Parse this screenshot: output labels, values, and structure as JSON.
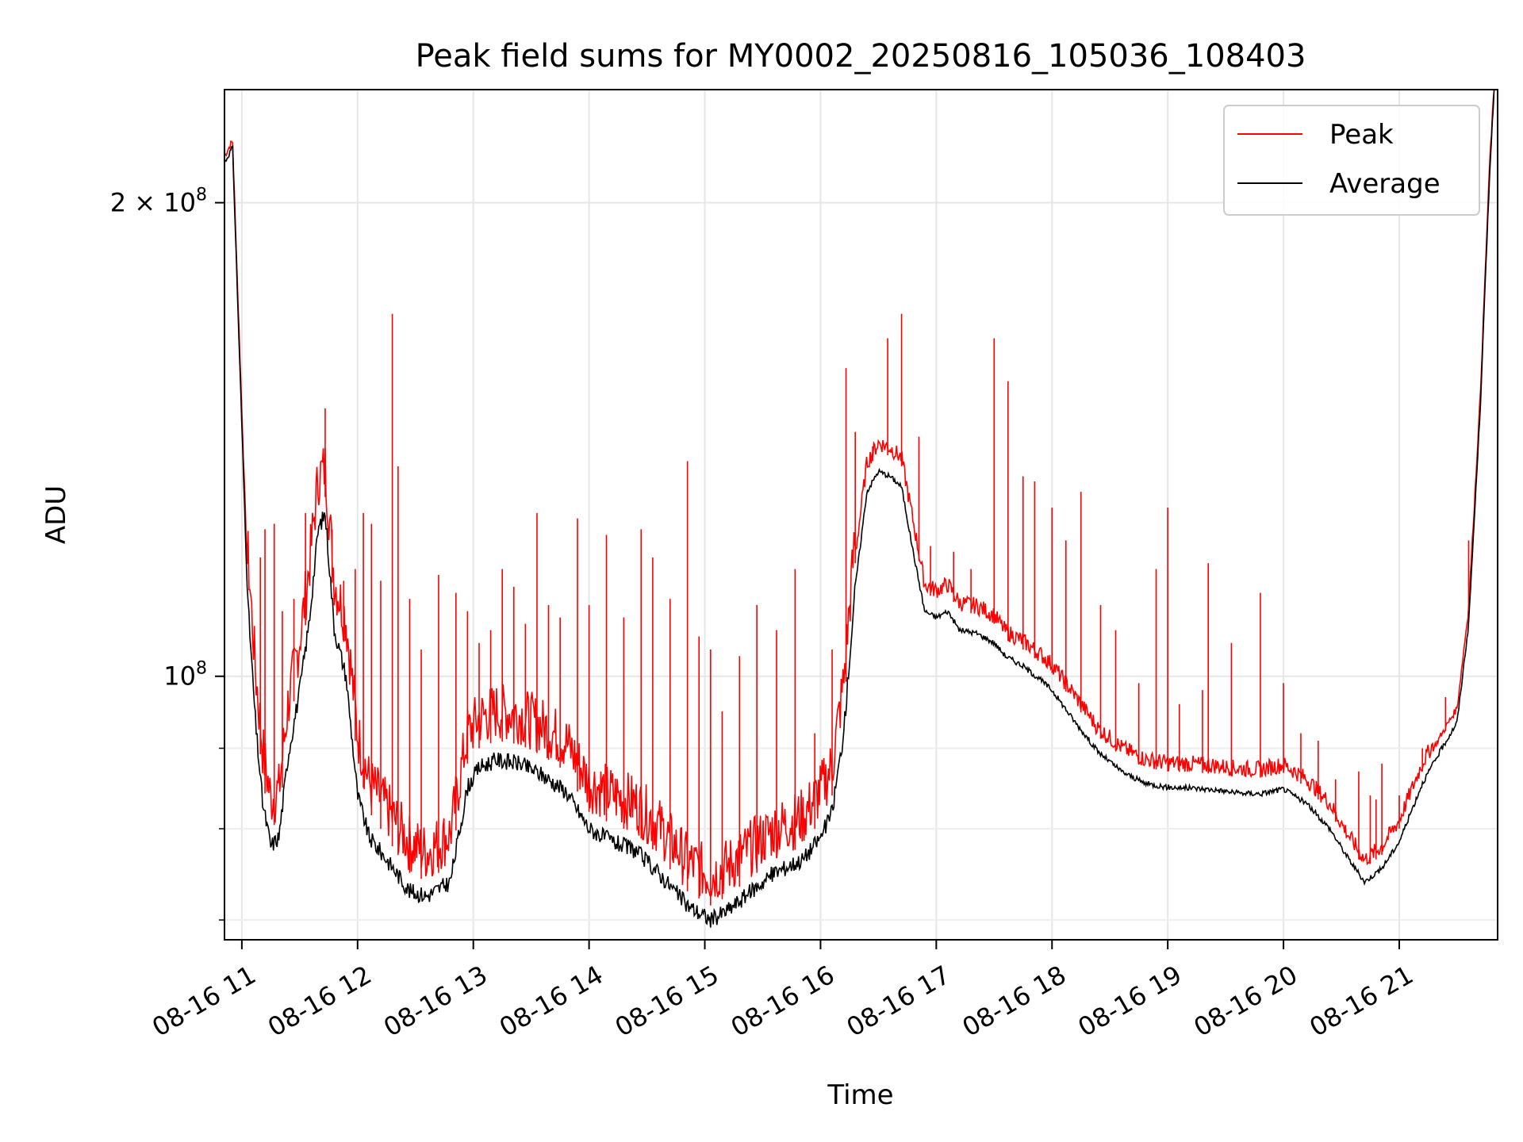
{
  "chart_data": {
    "type": "line",
    "title": "Peak field sums for MY0002_20250816_105036_108403",
    "xlabel": "Time",
    "ylabel": "ADU",
    "yscale": "log",
    "x_unit": "hour of 2025-08-16",
    "xlim": [
      10.85,
      21.85
    ],
    "ylim": [
      68000000,
      236000000
    ],
    "grid": true,
    "legend_position": "top-right",
    "x_ticks": [
      {
        "value": 11,
        "label": "08-16 11"
      },
      {
        "value": 12,
        "label": "08-16 12"
      },
      {
        "value": 13,
        "label": "08-16 13"
      },
      {
        "value": 14,
        "label": "08-16 14"
      },
      {
        "value": 15,
        "label": "08-16 15"
      },
      {
        "value": 16,
        "label": "08-16 16"
      },
      {
        "value": 17,
        "label": "08-16 17"
      },
      {
        "value": 18,
        "label": "08-16 18"
      },
      {
        "value": 19,
        "label": "08-16 19"
      },
      {
        "value": 20,
        "label": "08-16 20"
      },
      {
        "value": 21,
        "label": "08-16 21"
      }
    ],
    "y_major_ticks": [
      {
        "value": 100000000,
        "base": "10",
        "exp": "8",
        "prefix": ""
      },
      {
        "value": 200000000,
        "base": "10",
        "exp": "8",
        "prefix": "2 × "
      }
    ],
    "y_minor_ticks": [
      70000000,
      80000000,
      90000000
    ],
    "series": [
      {
        "name": "Peak",
        "color": "#ff0000",
        "points": [
          [
            10.85,
            213000000
          ],
          [
            10.92,
            218000000
          ],
          [
            10.97,
            170000000
          ],
          [
            11.05,
            115000000
          ],
          [
            11.12,
            96000000
          ],
          [
            11.18,
            86000000
          ],
          [
            11.25,
            80000000
          ],
          [
            11.32,
            81000000
          ],
          [
            11.4,
            92000000
          ],
          [
            11.5,
            101000000
          ],
          [
            11.58,
            112000000
          ],
          [
            11.66,
            128000000
          ],
          [
            11.72,
            130000000
          ],
          [
            11.8,
            110000000
          ],
          [
            11.9,
            104000000
          ],
          [
            12.0,
            88000000
          ],
          [
            12.1,
            82000000
          ],
          [
            12.25,
            79000000
          ],
          [
            12.45,
            75000000
          ],
          [
            12.6,
            74000000
          ],
          [
            12.8,
            76000000
          ],
          [
            12.95,
            88000000
          ],
          [
            13.05,
            90000000
          ],
          [
            13.2,
            91000000
          ],
          [
            13.4,
            90500000
          ],
          [
            13.6,
            89000000
          ],
          [
            13.8,
            87000000
          ],
          [
            14.0,
            82000000
          ],
          [
            14.2,
            80500000
          ],
          [
            14.4,
            79500000
          ],
          [
            14.6,
            77000000
          ],
          [
            14.85,
            73000000
          ],
          [
            15.05,
            71500000
          ],
          [
            15.2,
            72500000
          ],
          [
            15.4,
            74500000
          ],
          [
            15.6,
            76500000
          ],
          [
            15.85,
            78000000
          ],
          [
            16.0,
            81000000
          ],
          [
            16.1,
            84000000
          ],
          [
            16.2,
            95000000
          ],
          [
            16.3,
            118000000
          ],
          [
            16.4,
            135000000
          ],
          [
            16.5,
            139000000
          ],
          [
            16.6,
            138000000
          ],
          [
            16.7,
            136000000
          ],
          [
            16.8,
            124000000
          ],
          [
            16.9,
            113000000
          ],
          [
            17.0,
            112000000
          ],
          [
            17.1,
            113000000
          ],
          [
            17.2,
            110000000
          ],
          [
            17.35,
            109500000
          ],
          [
            17.5,
            108000000
          ],
          [
            17.6,
            105500000
          ],
          [
            17.75,
            104000000
          ],
          [
            17.9,
            102000000
          ],
          [
            18.0,
            100500000
          ],
          [
            18.2,
            96000000
          ],
          [
            18.4,
            91500000
          ],
          [
            18.6,
            89000000
          ],
          [
            18.8,
            87500000
          ],
          [
            19.0,
            87000000
          ],
          [
            19.2,
            86900000
          ],
          [
            19.4,
            86700000
          ],
          [
            19.6,
            86300000
          ],
          [
            19.8,
            86200000
          ],
          [
            20.0,
            86800000
          ],
          [
            20.2,
            85000000
          ],
          [
            20.4,
            82000000
          ],
          [
            20.55,
            78500000
          ],
          [
            20.7,
            75500000
          ],
          [
            20.85,
            77000000
          ],
          [
            21.0,
            80000000
          ],
          [
            21.2,
            87000000
          ],
          [
            21.35,
            91000000
          ],
          [
            21.5,
            95000000
          ],
          [
            21.6,
            110000000
          ],
          [
            21.7,
            150000000
          ],
          [
            21.78,
            210000000
          ],
          [
            21.82,
            236000000
          ]
        ],
        "spikes": [
          [
            11.16,
            119000000
          ],
          [
            11.2,
            124000000
          ],
          [
            11.28,
            125000000
          ],
          [
            11.35,
            110000000
          ],
          [
            11.45,
            112000000
          ],
          [
            11.55,
            127000000
          ],
          [
            11.72,
            148000000
          ],
          [
            11.78,
            124000000
          ],
          [
            11.88,
            115000000
          ],
          [
            11.98,
            117000000
          ],
          [
            12.05,
            127000000
          ],
          [
            12.12,
            125000000
          ],
          [
            12.2,
            115000000
          ],
          [
            12.3,
            170000000
          ],
          [
            12.35,
            136000000
          ],
          [
            12.45,
            112000000
          ],
          [
            12.55,
            104000000
          ],
          [
            12.7,
            116000000
          ],
          [
            12.85,
            113000000
          ],
          [
            12.95,
            110000000
          ],
          [
            13.05,
            105000000
          ],
          [
            13.15,
            107000000
          ],
          [
            13.25,
            117000000
          ],
          [
            13.35,
            114000000
          ],
          [
            13.45,
            108000000
          ],
          [
            13.55,
            127000000
          ],
          [
            13.65,
            111000000
          ],
          [
            13.75,
            109000000
          ],
          [
            13.9,
            126000000
          ],
          [
            14.0,
            111000000
          ],
          [
            14.15,
            123000000
          ],
          [
            14.3,
            109000000
          ],
          [
            14.45,
            124000000
          ],
          [
            14.55,
            119000000
          ],
          [
            14.7,
            112000000
          ],
          [
            14.85,
            137000000
          ],
          [
            14.95,
            106000000
          ],
          [
            15.05,
            104000000
          ],
          [
            15.15,
            95000000
          ],
          [
            15.3,
            103000000
          ],
          [
            15.45,
            111000000
          ],
          [
            15.62,
            107000000
          ],
          [
            15.78,
            117000000
          ],
          [
            15.95,
            92000000
          ],
          [
            16.1,
            104000000
          ],
          [
            16.22,
            157000000
          ],
          [
            16.3,
            143000000
          ],
          [
            16.45,
            140000000
          ],
          [
            16.58,
            164000000
          ],
          [
            16.7,
            170000000
          ],
          [
            16.85,
            142000000
          ],
          [
            16.95,
            121000000
          ],
          [
            17.15,
            120000000
          ],
          [
            17.3,
            117000000
          ],
          [
            17.5,
            164000000
          ],
          [
            17.62,
            154000000
          ],
          [
            17.75,
            134000000
          ],
          [
            17.85,
            133000000
          ],
          [
            18.0,
            128000000
          ],
          [
            18.12,
            122000000
          ],
          [
            18.25,
            131000000
          ],
          [
            18.42,
            111000000
          ],
          [
            18.55,
            107000000
          ],
          [
            18.75,
            99000000
          ],
          [
            18.9,
            117000000
          ],
          [
            19.0,
            128000000
          ],
          [
            19.1,
            96000000
          ],
          [
            19.3,
            98000000
          ],
          [
            19.35,
            118000000
          ],
          [
            19.55,
            105000000
          ],
          [
            19.8,
            113000000
          ],
          [
            20.0,
            99000000
          ],
          [
            20.15,
            92000000
          ],
          [
            20.3,
            91000000
          ],
          [
            20.45,
            86000000
          ],
          [
            20.65,
            87000000
          ],
          [
            20.75,
            84000000
          ],
          [
            20.8,
            83500000
          ],
          [
            20.85,
            88000000
          ],
          [
            21.0,
            84000000
          ],
          [
            21.2,
            90000000
          ],
          [
            21.4,
            97000000
          ],
          [
            21.6,
            122000000
          ]
        ]
      },
      {
        "name": "Average",
        "color": "#000000",
        "points": [
          [
            10.85,
            212000000
          ],
          [
            10.92,
            217000000
          ],
          [
            10.97,
            168000000
          ],
          [
            11.05,
            112000000
          ],
          [
            11.12,
            93000000
          ],
          [
            11.18,
            83000000
          ],
          [
            11.25,
            78000000
          ],
          [
            11.32,
            79000000
          ],
          [
            11.4,
            89000000
          ],
          [
            11.5,
            98000000
          ],
          [
            11.58,
            108000000
          ],
          [
            11.66,
            124000000
          ],
          [
            11.72,
            127000000
          ],
          [
            11.8,
            107000000
          ],
          [
            11.9,
            100000000
          ],
          [
            12.0,
            84000000
          ],
          [
            12.1,
            79000000
          ],
          [
            12.25,
            76500000
          ],
          [
            12.45,
            73000000
          ],
          [
            12.6,
            72500000
          ],
          [
            12.8,
            74000000
          ],
          [
            12.95,
            85000000
          ],
          [
            13.05,
            87500000
          ],
          [
            13.2,
            88500000
          ],
          [
            13.4,
            88000000
          ],
          [
            13.6,
            86500000
          ],
          [
            13.8,
            84500000
          ],
          [
            14.0,
            80000000
          ],
          [
            14.2,
            78500000
          ],
          [
            14.4,
            77500000
          ],
          [
            14.6,
            75000000
          ],
          [
            14.85,
            71500000
          ],
          [
            15.05,
            70000000
          ],
          [
            15.2,
            71000000
          ],
          [
            15.4,
            73000000
          ],
          [
            15.6,
            75000000
          ],
          [
            15.85,
            76500000
          ],
          [
            16.0,
            79000000
          ],
          [
            16.1,
            82000000
          ],
          [
            16.2,
            92000000
          ],
          [
            16.3,
            114000000
          ],
          [
            16.4,
            131000000
          ],
          [
            16.5,
            135000000
          ],
          [
            16.6,
            134000000
          ],
          [
            16.7,
            132000000
          ],
          [
            16.8,
            120000000
          ],
          [
            16.9,
            110000000
          ],
          [
            17.0,
            109000000
          ],
          [
            17.1,
            110000000
          ],
          [
            17.2,
            107000000
          ],
          [
            17.35,
            106500000
          ],
          [
            17.5,
            105000000
          ],
          [
            17.6,
            103000000
          ],
          [
            17.75,
            101500000
          ],
          [
            17.9,
            99500000
          ],
          [
            18.0,
            98000000
          ],
          [
            18.2,
            93500000
          ],
          [
            18.4,
            89500000
          ],
          [
            18.6,
            87000000
          ],
          [
            18.8,
            85500000
          ],
          [
            19.0,
            85000000
          ],
          [
            19.2,
            84900000
          ],
          [
            19.4,
            84700000
          ],
          [
            19.6,
            84300000
          ],
          [
            19.8,
            84200000
          ],
          [
            20.0,
            84800000
          ],
          [
            20.2,
            83000000
          ],
          [
            20.4,
            80000000
          ],
          [
            20.55,
            76800000
          ],
          [
            20.7,
            74000000
          ],
          [
            20.85,
            75500000
          ],
          [
            21.0,
            78500000
          ],
          [
            21.2,
            85500000
          ],
          [
            21.35,
            89500000
          ],
          [
            21.5,
            93500000
          ],
          [
            21.6,
            108000000
          ],
          [
            21.7,
            148000000
          ],
          [
            21.78,
            208000000
          ],
          [
            21.82,
            236000000
          ]
        ]
      }
    ]
  }
}
